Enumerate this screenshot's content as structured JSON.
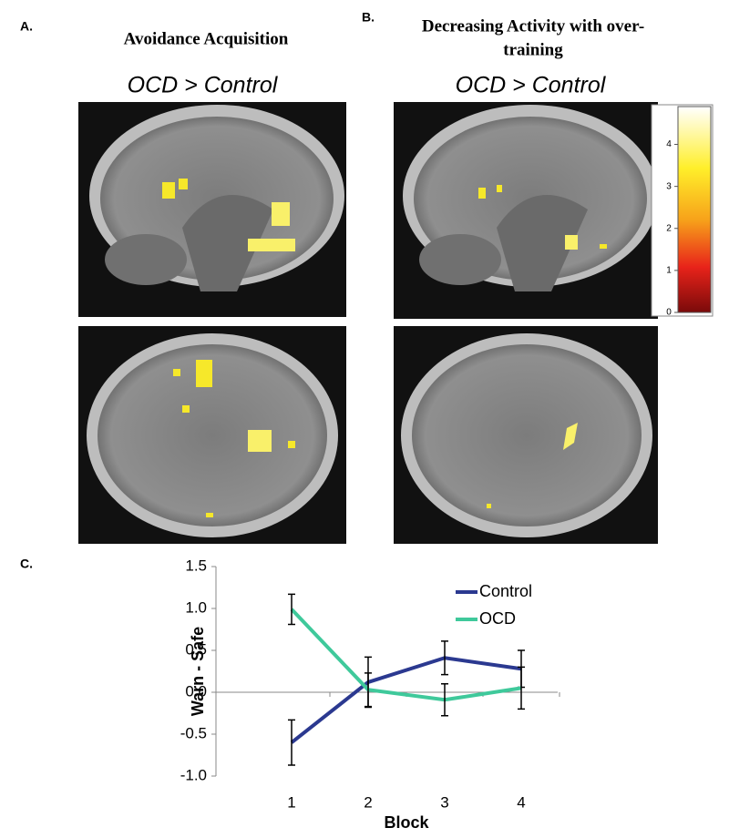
{
  "panel_a": {
    "label": "A.",
    "title": "Avoidance Acquisition",
    "contrast": "OCD > Control"
  },
  "panel_b": {
    "label": "B.",
    "title_lines": [
      "Decreasing Activity with over-",
      "training"
    ],
    "contrast": "OCD > Control"
  },
  "colorbar": {
    "lim": [
      0,
      4.9
    ],
    "ticks": [
      0,
      1,
      2,
      3,
      4
    ]
  },
  "chart_data": {
    "type": "line",
    "panel_label": "C.",
    "categories": [
      "1",
      "2",
      "3",
      "4"
    ],
    "x_label": "Block",
    "y_label": "Warn - Safe",
    "ylim": [
      -1,
      1.5
    ],
    "yticks": [
      {
        "value": -1,
        "label": "-1.0"
      },
      -0.5,
      {
        "value": 0,
        "label": "0.0"
      },
      0.5,
      {
        "value": 1,
        "label": "1.0"
      },
      1.5
    ],
    "series": [
      {
        "name": "Control",
        "color": "#2b3990",
        "values": [
          -0.6,
          0.12,
          0.41,
          0.28
        ],
        "errors": [
          0.27,
          0.3,
          0.2,
          0.22
        ]
      },
      {
        "name": "OCD",
        "color": "#3fc99b",
        "values": [
          0.99,
          0.03,
          -0.09,
          0.05
        ],
        "errors": [
          0.18,
          0.2,
          0.19,
          0.25
        ]
      }
    ]
  }
}
